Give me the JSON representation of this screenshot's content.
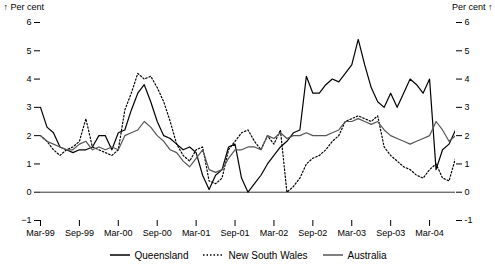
{
  "chart_data": {
    "type": "line",
    "ylabel": "Per cent",
    "y2label": "Per cent",
    "categories": [
      "Mar-99",
      null,
      null,
      null,
      null,
      null,
      "Sep-99",
      null,
      null,
      null,
      null,
      null,
      "Mar-00",
      null,
      null,
      null,
      null,
      null,
      "Sep-00",
      null,
      null,
      null,
      null,
      null,
      "Mar-01",
      null,
      null,
      null,
      null,
      null,
      "Sep-01",
      null,
      null,
      null,
      null,
      null,
      "Mar-02",
      null,
      null,
      null,
      null,
      null,
      "Sep-02",
      null,
      null,
      null,
      null,
      null,
      "Mar-03",
      null,
      null,
      null,
      null,
      null,
      "Sep-03",
      null,
      null,
      null,
      null,
      null,
      "Mar-04",
      null,
      null,
      null,
      null
    ],
    "series": [
      {
        "name": "Queensland",
        "color": "#000000",
        "line_style": "solid",
        "values": [
          3.0,
          2.3,
          2.1,
          1.6,
          1.5,
          1.4,
          1.5,
          1.5,
          1.6,
          2.0,
          2.0,
          1.5,
          2.1,
          2.2,
          2.9,
          3.5,
          3.8,
          3.2,
          2.5,
          2.0,
          1.9,
          1.7,
          1.5,
          1.6,
          1.4,
          0.6,
          0.1,
          0.6,
          0.8,
          1.6,
          1.7,
          0.5,
          0.0,
          0.3,
          0.6,
          1.0,
          1.3,
          1.6,
          1.8,
          2.1,
          2.2,
          4.1,
          3.5,
          3.5,
          3.8,
          4.0,
          3.9,
          4.2,
          4.5,
          5.4,
          4.5,
          3.7,
          3.2,
          3.0,
          3.5,
          3.0,
          3.5,
          4.0,
          3.8,
          3.5,
          4.0,
          0.8,
          1.5,
          1.7,
          2.2
        ]
      },
      {
        "name": "New South Wales",
        "color": "#000000",
        "line_style": "dotted",
        "values": [
          2.0,
          1.8,
          1.5,
          1.3,
          1.5,
          1.6,
          1.8,
          2.6,
          1.6,
          1.5,
          1.4,
          1.3,
          1.5,
          2.9,
          3.5,
          4.2,
          4.0,
          4.1,
          3.7,
          3.2,
          2.5,
          1.7,
          1.3,
          1.1,
          1.5,
          1.6,
          0.4,
          0.3,
          0.5,
          1.5,
          1.8,
          2.1,
          2.2,
          1.8,
          1.5,
          2.0,
          1.7,
          2.2,
          0.0,
          0.2,
          0.5,
          1.0,
          1.2,
          1.3,
          1.5,
          1.8,
          2.0,
          2.5,
          2.6,
          2.7,
          2.6,
          2.5,
          2.7,
          1.6,
          1.3,
          1.1,
          0.9,
          0.8,
          0.6,
          0.5,
          0.8,
          1.0,
          0.5,
          0.4,
          1.2
        ]
      },
      {
        "name": "Australia",
        "color": "#555555",
        "line_style": "solid",
        "values": [
          2.0,
          1.8,
          1.7,
          1.6,
          1.5,
          1.5,
          1.7,
          1.8,
          1.5,
          1.6,
          1.5,
          1.6,
          1.5,
          2.0,
          2.1,
          2.2,
          2.5,
          2.3,
          2.0,
          1.8,
          1.5,
          1.4,
          1.1,
          0.9,
          1.2,
          1.5,
          0.8,
          0.7,
          0.8,
          1.2,
          1.5,
          1.5,
          1.6,
          1.6,
          1.5,
          2.0,
          1.9,
          2.1,
          1.9,
          2.0,
          2.0,
          2.1,
          2.0,
          2.0,
          2.0,
          2.1,
          2.2,
          2.5,
          2.5,
          2.6,
          2.5,
          2.4,
          2.5,
          2.2,
          2.0,
          1.9,
          1.8,
          1.7,
          1.8,
          1.9,
          2.0,
          2.5,
          2.2,
          1.8,
          2.0
        ]
      }
    ],
    "ylim": [
      -1,
      6
    ],
    "yticks": [
      -1,
      0,
      1,
      2,
      3,
      4,
      5,
      6
    ],
    "y2lim": [
      -1,
      6
    ],
    "y2ticks": [
      -1,
      0,
      1,
      2,
      3,
      4,
      5,
      6
    ],
    "grid": false,
    "legend": "bottom"
  }
}
